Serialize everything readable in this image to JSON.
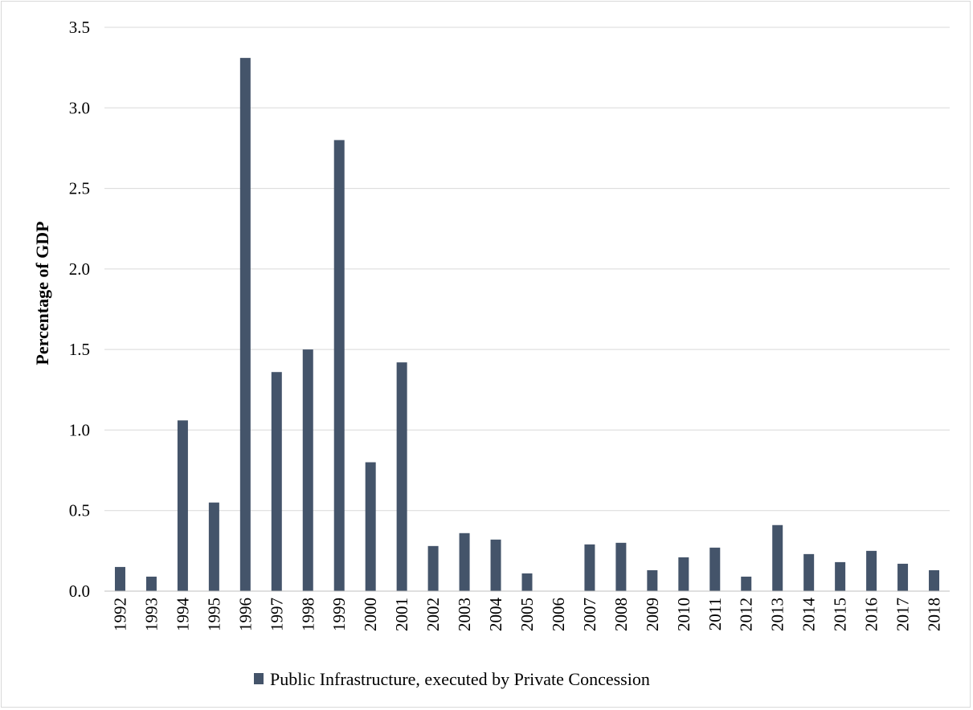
{
  "chart_data": {
    "type": "bar",
    "title": "",
    "xlabel": "",
    "ylabel": "Percentage of GDP",
    "ylim": [
      0,
      3.5
    ],
    "yticks": [
      "0.0",
      "0.5",
      "1.0",
      "1.5",
      "2.0",
      "2.5",
      "3.0",
      "3.5"
    ],
    "grid": "horizontal",
    "legend_position": "bottom",
    "categories": [
      "1992",
      "1993",
      "1994",
      "1995",
      "1996",
      "1997",
      "1998",
      "1999",
      "2000",
      "2001",
      "2002",
      "2003",
      "2004",
      "2005",
      "2006",
      "2007",
      "2008",
      "2009",
      "2010",
      "2011",
      "2012",
      "2013",
      "2014",
      "2015",
      "2016",
      "2017",
      "2018"
    ],
    "series": [
      {
        "name": "Public Infrastructure, executed by Private Concession",
        "color": "#44546a",
        "values": [
          0.15,
          0.09,
          1.06,
          0.55,
          3.31,
          1.36,
          1.5,
          2.8,
          0.8,
          1.42,
          0.28,
          0.36,
          0.32,
          0.11,
          0.0,
          0.29,
          0.3,
          0.13,
          0.21,
          0.27,
          0.09,
          0.41,
          0.23,
          0.18,
          0.25,
          0.17,
          0.13
        ]
      }
    ]
  }
}
